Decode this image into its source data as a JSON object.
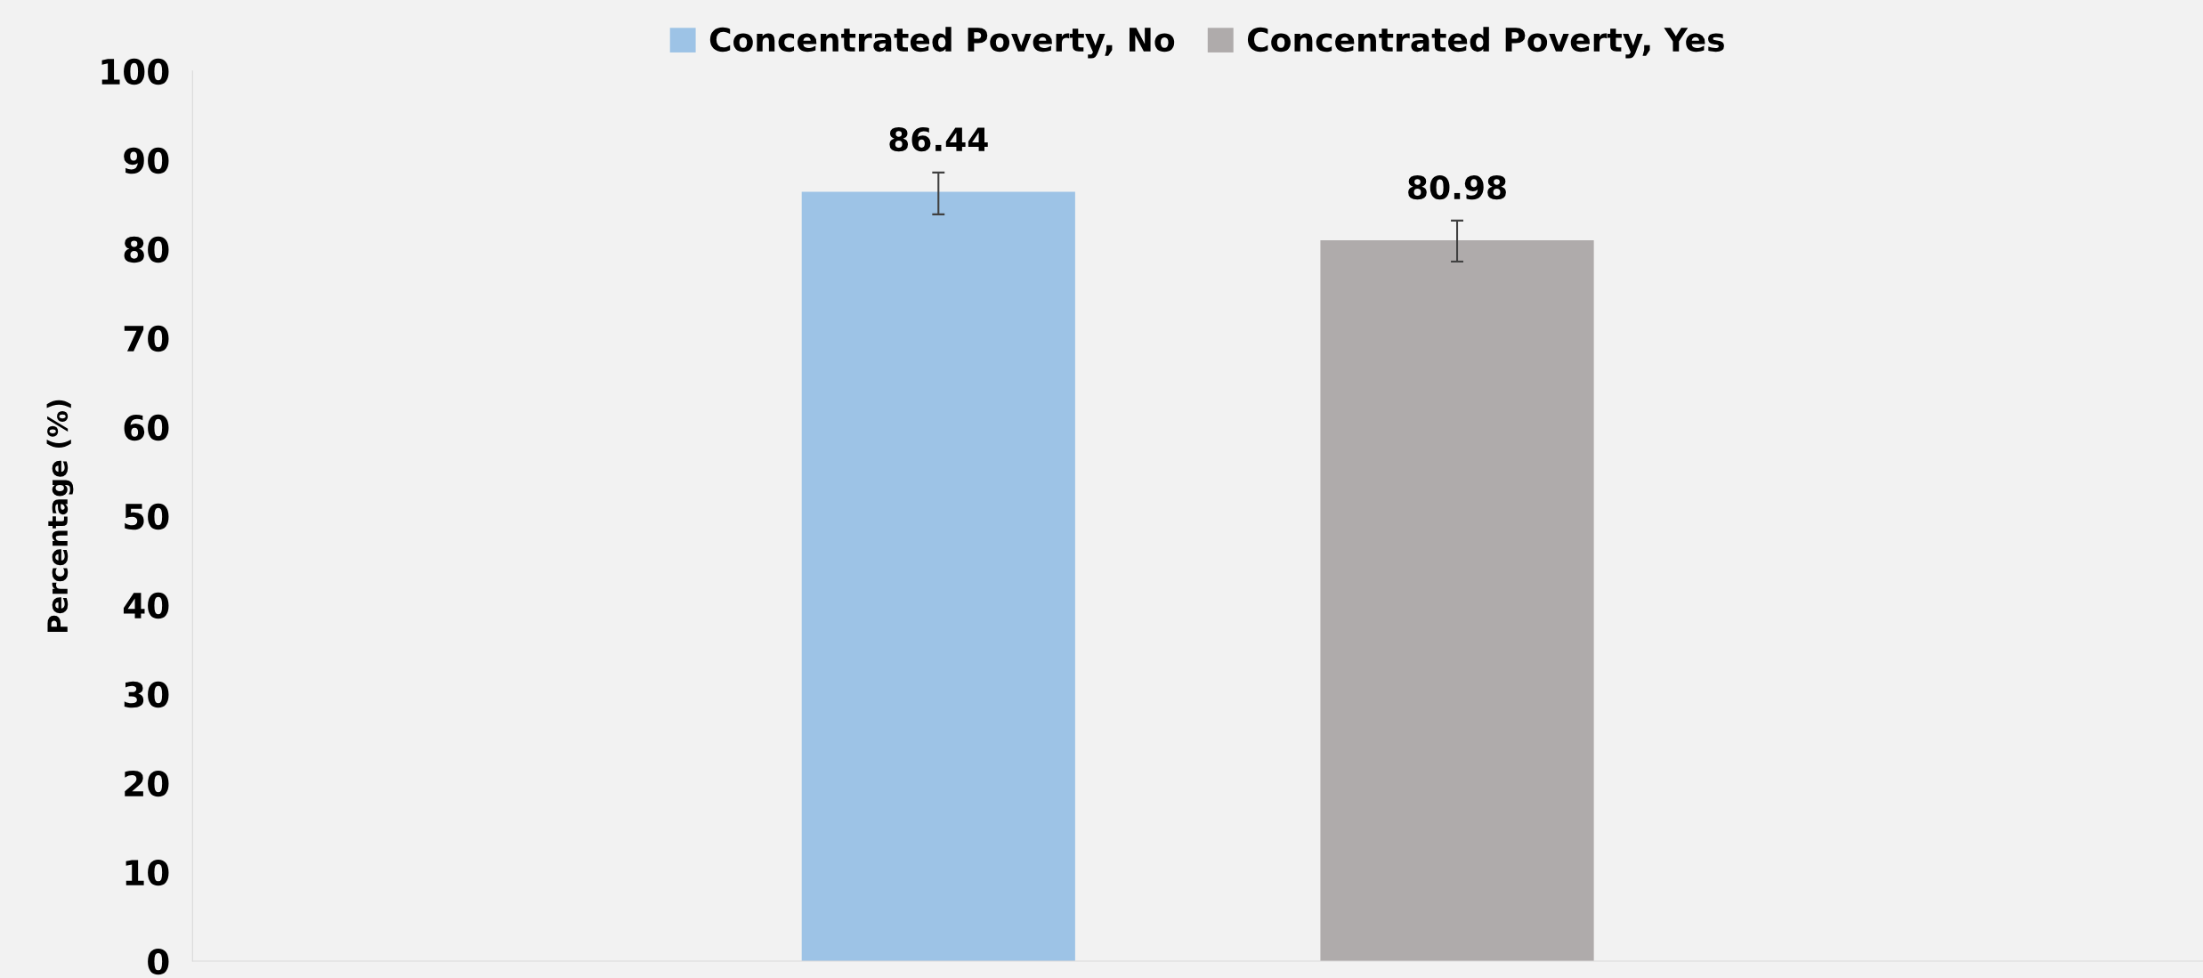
{
  "chart_data": {
    "type": "bar",
    "ylabel": "Percentage (%)",
    "categories": [
      null
    ],
    "series": [
      {
        "name": "Concentrated Poverty, No",
        "color": "#9dc3e6",
        "values": [
          86.44
        ],
        "errors": [
          [
            83.9,
            88.6
          ]
        ]
      },
      {
        "name": "Concentrated Poverty, Yes",
        "color": "#afabab",
        "values": [
          80.98
        ],
        "errors": [
          [
            78.6,
            83.2
          ]
        ]
      }
    ],
    "ylim": [
      0,
      100
    ],
    "yticks": [
      0,
      10,
      20,
      30,
      40,
      50,
      60,
      70,
      80,
      90,
      100
    ],
    "data_labels": true,
    "legend": "top",
    "grid": false
  }
}
